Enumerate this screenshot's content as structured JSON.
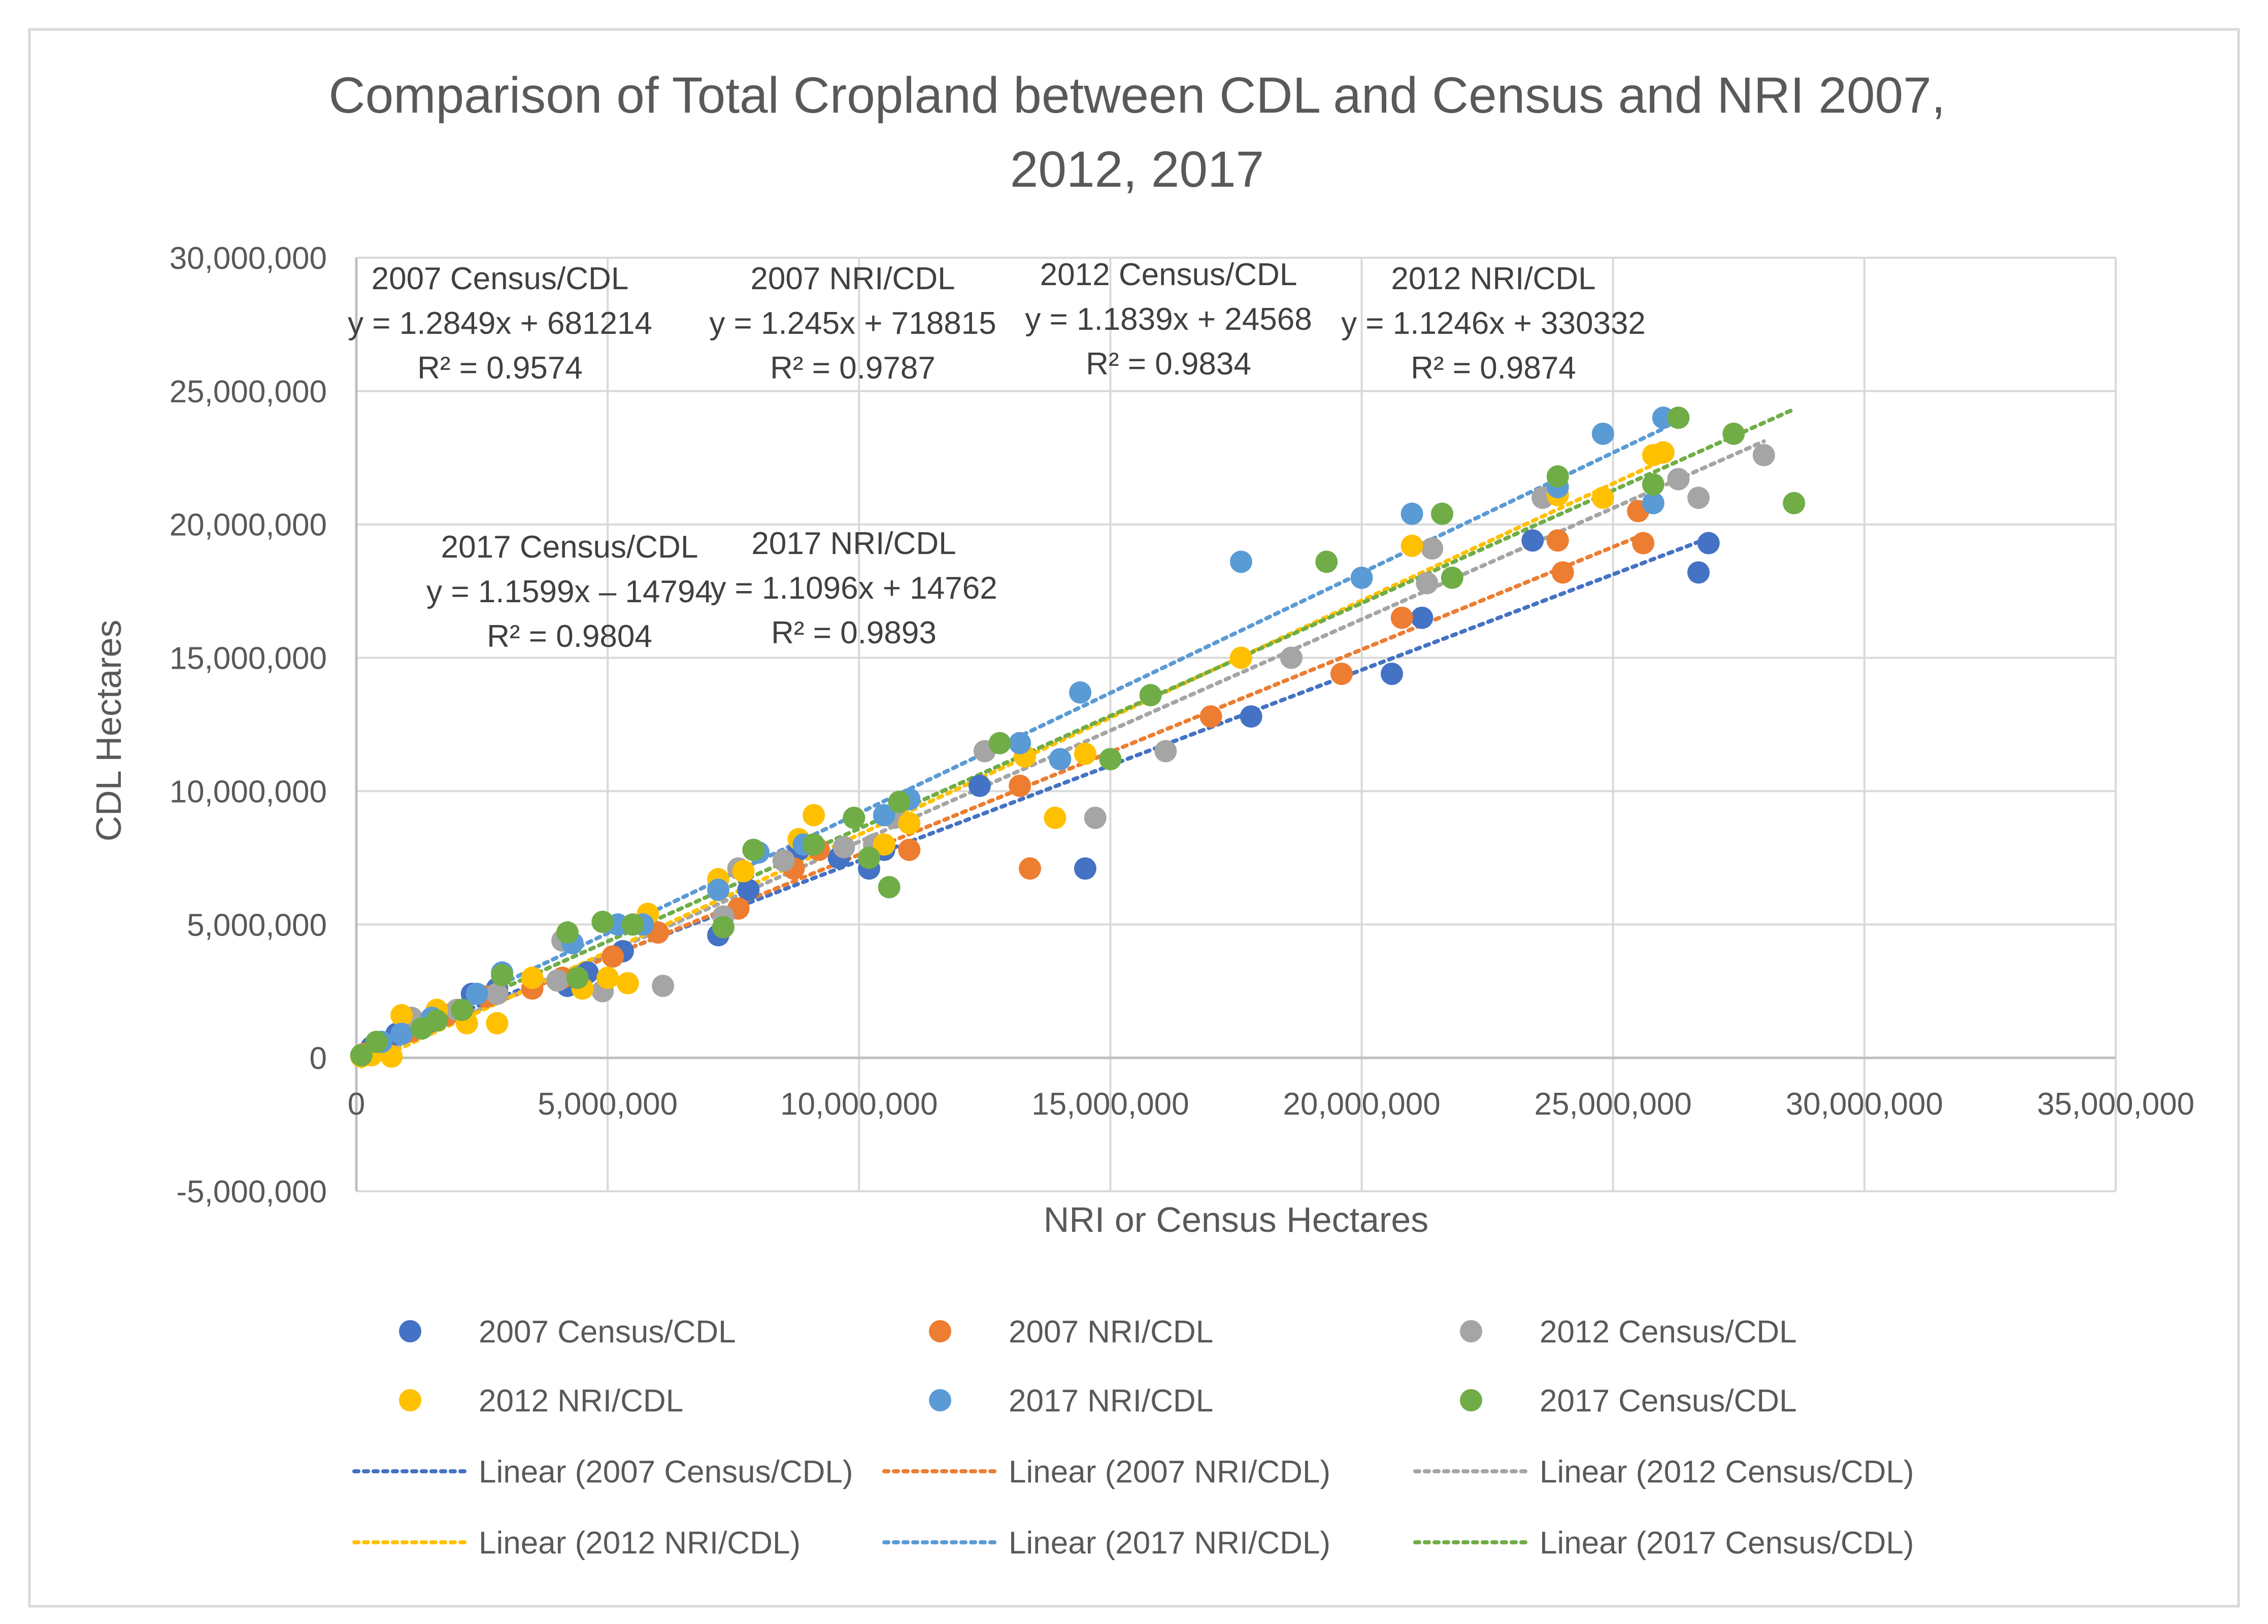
{
  "chart_data": {
    "type": "scatter",
    "title": "Comparison of Total Cropland between CDL and Census and NRI 2007, 2012, 2017",
    "title_lines": [
      "Comparison of Total Cropland between CDL and Census and NRI 2007,",
      "2012, 2017"
    ],
    "xlabel": "NRI or Census Hectares",
    "ylabel": "CDL Hectares",
    "xlim": [
      0,
      35000000
    ],
    "ylim": [
      -5000000,
      30000000
    ],
    "x_ticks": [
      0,
      5000000,
      10000000,
      15000000,
      20000000,
      25000000,
      30000000,
      35000000
    ],
    "y_ticks": [
      -5000000,
      0,
      5000000,
      10000000,
      15000000,
      20000000,
      25000000,
      30000000
    ],
    "x_tick_labels": [
      "0",
      "5,000,000",
      "10,000,000",
      "15,000,000",
      "20,000,000",
      "25,000,000",
      "30,000,000",
      "35,000,000"
    ],
    "y_tick_labels": [
      "-5,000,000",
      "0",
      "5,000,000",
      "10,000,000",
      "15,000,000",
      "20,000,000",
      "25,000,000",
      "30,000,000"
    ],
    "grid": true,
    "legend_position": "bottom",
    "series": [
      {
        "name": "2007 Census/CDL",
        "color": "#4472C4",
        "trend_label": "Linear (2007 Census/CDL)",
        "equation": "y = 1.2849x + 681214",
        "r2": "R² = 0.9574",
        "points": [
          [
            100000,
            100000
          ],
          [
            300000,
            400000
          ],
          [
            800000,
            900000
          ],
          [
            1400000,
            1300000
          ],
          [
            2300000,
            2400000
          ],
          [
            2800000,
            2600000
          ],
          [
            4200000,
            2700000
          ],
          [
            4600000,
            3200000
          ],
          [
            5300000,
            4000000
          ],
          [
            7200000,
            4600000
          ],
          [
            7800000,
            6300000
          ],
          [
            8800000,
            7800000
          ],
          [
            9600000,
            7500000
          ],
          [
            10200000,
            7100000
          ],
          [
            10500000,
            7800000
          ],
          [
            12400000,
            10200000
          ],
          [
            14500000,
            7100000
          ],
          [
            17800000,
            12800000
          ],
          [
            20600000,
            14400000
          ],
          [
            21200000,
            16500000
          ],
          [
            23400000,
            19400000
          ],
          [
            26700000,
            18200000
          ],
          [
            26900000,
            19300000
          ]
        ]
      },
      {
        "name": "2007 NRI/CDL",
        "color": "#ED7D31",
        "trend_label": "Linear (2007 NRI/CDL)",
        "equation": "y = 1.245x + 718815",
        "r2": "R² = 0.9787",
        "points": [
          [
            150000,
            150000
          ],
          [
            500000,
            500000
          ],
          [
            1100000,
            1000000
          ],
          [
            1800000,
            1600000
          ],
          [
            2600000,
            2300000
          ],
          [
            3500000,
            2600000
          ],
          [
            4100000,
            3000000
          ],
          [
            5100000,
            3800000
          ],
          [
            6000000,
            4700000
          ],
          [
            7600000,
            5600000
          ],
          [
            8700000,
            7100000
          ],
          [
            9200000,
            7800000
          ],
          [
            11000000,
            7800000
          ],
          [
            13200000,
            10200000
          ],
          [
            13400000,
            7100000
          ],
          [
            17000000,
            12800000
          ],
          [
            19600000,
            14400000
          ],
          [
            20800000,
            16500000
          ],
          [
            23900000,
            19400000
          ],
          [
            24000000,
            18200000
          ],
          [
            25500000,
            20500000
          ],
          [
            25600000,
            19300000
          ]
        ]
      },
      {
        "name": "2012 Census/CDL",
        "color": "#A5A5A5",
        "trend_label": "Linear (2012 Census/CDL)",
        "equation": "y = 1.1839x + 24568",
        "r2": "R² = 0.9834",
        "points": [
          [
            100000,
            100000
          ],
          [
            400000,
            500000
          ],
          [
            1100000,
            1500000
          ],
          [
            2000000,
            1800000
          ],
          [
            2800000,
            2400000
          ],
          [
            4000000,
            2900000
          ],
          [
            4100000,
            4400000
          ],
          [
            4900000,
            2500000
          ],
          [
            6100000,
            2700000
          ],
          [
            7300000,
            5300000
          ],
          [
            7600000,
            7100000
          ],
          [
            8500000,
            7400000
          ],
          [
            9700000,
            7900000
          ],
          [
            10300000,
            8000000
          ],
          [
            10700000,
            9000000
          ],
          [
            12500000,
            11500000
          ],
          [
            14700000,
            9000000
          ],
          [
            16100000,
            11500000
          ],
          [
            18600000,
            15000000
          ],
          [
            21300000,
            17800000
          ],
          [
            21400000,
            19100000
          ],
          [
            23600000,
            21000000
          ],
          [
            26000000,
            22700000
          ],
          [
            26300000,
            21700000
          ],
          [
            26700000,
            21000000
          ],
          [
            28000000,
            22600000
          ]
        ]
      },
      {
        "name": "2012 NRI/CDL",
        "color": "#FFC000",
        "trend_label": "Linear (2012 NRI/CDL)",
        "equation": "y = 1.1246x + 330332",
        "r2": "R² = 0.9874",
        "points": [
          [
            100000,
            50000
          ],
          [
            300000,
            100000
          ],
          [
            700000,
            50000
          ],
          [
            900000,
            1600000
          ],
          [
            1600000,
            1800000
          ],
          [
            2200000,
            1300000
          ],
          [
            2800000,
            1300000
          ],
          [
            3500000,
            3000000
          ],
          [
            4500000,
            2600000
          ],
          [
            5000000,
            3000000
          ],
          [
            5400000,
            2800000
          ],
          [
            5800000,
            5400000
          ],
          [
            7200000,
            6700000
          ],
          [
            7700000,
            7000000
          ],
          [
            8800000,
            8200000
          ],
          [
            9100000,
            9100000
          ],
          [
            10500000,
            8000000
          ],
          [
            11000000,
            8800000
          ],
          [
            13300000,
            11300000
          ],
          [
            13900000,
            9000000
          ],
          [
            14500000,
            11400000
          ],
          [
            17600000,
            15000000
          ],
          [
            21000000,
            19200000
          ],
          [
            23900000,
            21100000
          ],
          [
            24800000,
            21000000
          ],
          [
            25800000,
            22600000
          ],
          [
            26000000,
            22700000
          ]
        ]
      },
      {
        "name": "2017 NRI/CDL",
        "color": "#5B9BD5",
        "trend_label": "Linear (2017 NRI/CDL)",
        "equation": "y = 1.1096x + 14762",
        "r2": "R² = 0.9893",
        "points": [
          [
            100000,
            100000
          ],
          [
            500000,
            600000
          ],
          [
            900000,
            900000
          ],
          [
            1500000,
            1500000
          ],
          [
            2400000,
            2400000
          ],
          [
            2900000,
            3200000
          ],
          [
            4300000,
            4300000
          ],
          [
            5200000,
            5000000
          ],
          [
            5700000,
            5000000
          ],
          [
            7200000,
            6300000
          ],
          [
            8000000,
            7700000
          ],
          [
            8900000,
            8000000
          ],
          [
            10500000,
            9100000
          ],
          [
            11000000,
            9700000
          ],
          [
            13200000,
            11800000
          ],
          [
            14000000,
            11200000
          ],
          [
            14400000,
            13700000
          ],
          [
            17600000,
            18600000
          ],
          [
            20000000,
            18000000
          ],
          [
            21000000,
            20400000
          ],
          [
            23900000,
            21400000
          ],
          [
            24800000,
            23400000
          ],
          [
            25800000,
            20800000
          ],
          [
            26000000,
            24000000
          ]
        ]
      },
      {
        "name": "2017 Census/CDL",
        "color": "#70AD47",
        "trend_label": "Linear (2017 Census/CDL)",
        "equation": "y = 1.1599x – 14794",
        "r2": "R² = 0.9804",
        "points": [
          [
            100000,
            100000
          ],
          [
            400000,
            600000
          ],
          [
            1300000,
            1100000
          ],
          [
            1600000,
            1400000
          ],
          [
            2100000,
            1800000
          ],
          [
            2900000,
            3100000
          ],
          [
            4200000,
            4700000
          ],
          [
            4400000,
            3000000
          ],
          [
            4900000,
            5100000
          ],
          [
            5500000,
            5000000
          ],
          [
            7300000,
            4900000
          ],
          [
            7900000,
            7800000
          ],
          [
            9100000,
            8000000
          ],
          [
            9900000,
            9000000
          ],
          [
            10200000,
            7500000
          ],
          [
            10600000,
            6400000
          ],
          [
            10800000,
            9600000
          ],
          [
            12800000,
            11800000
          ],
          [
            15000000,
            11200000
          ],
          [
            15800000,
            13600000
          ],
          [
            19300000,
            18600000
          ],
          [
            21600000,
            20400000
          ],
          [
            21800000,
            18000000
          ],
          [
            23900000,
            21800000
          ],
          [
            25800000,
            21500000
          ],
          [
            26300000,
            24000000
          ],
          [
            27400000,
            23400000
          ],
          [
            28600000,
            20800000
          ]
        ]
      }
    ]
  }
}
